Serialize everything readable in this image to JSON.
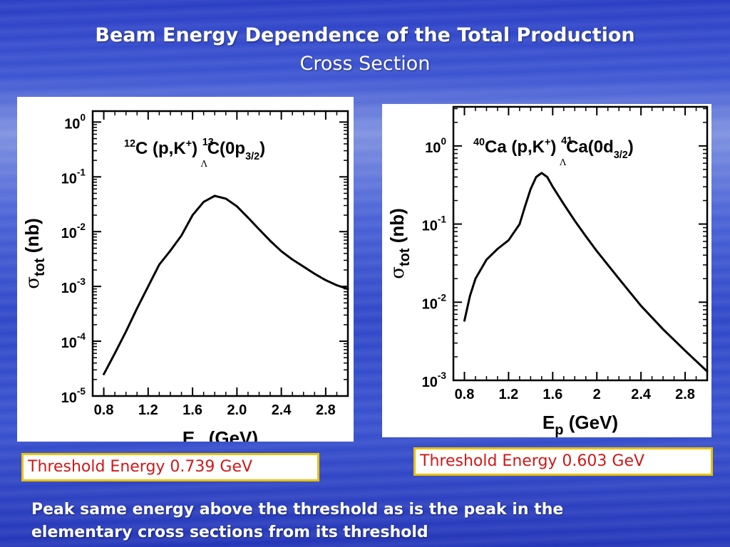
{
  "slide": {
    "title_line1": "Beam Energy Dependence of the Total Production",
    "title_line2": "Cross Section",
    "threshold1": "Threshold Energy 0.739 GeV",
    "threshold2": "Threshold Energy 0.603 GeV",
    "footer_line1": "Peak same energy above the threshold as is the peak in the",
    "footer_line2": "elementary cross sections from its threshold"
  },
  "chart_data": [
    {
      "type": "line",
      "reaction": {
        "target_mass": "12",
        "target": "C (p,K",
        "probe_sup": "+",
        "close": ")",
        "product_mass": "13",
        "lambda": "Λ",
        "product": "C(0p",
        "orbital_sub": "3/2",
        "end": ")"
      },
      "xlabel": {
        "main": "E",
        "sub": "p",
        "rest": " (GeV)"
      },
      "ylabel": {
        "main": "σ",
        "sub": "tot",
        "rest": " (nb)"
      },
      "xlim": [
        0.7,
        3.0
      ],
      "ylim_log10": [
        -5,
        0.2
      ],
      "log_y": true,
      "xticks": [
        "0.8",
        "1.2",
        "1.6",
        "2.0",
        "2.4",
        "2.8"
      ],
      "xtick_values": [
        0.8,
        1.2,
        1.6,
        2.0,
        2.4,
        2.8
      ],
      "yticks": [
        {
          "base": "10",
          "exp": "0",
          "value": 0
        },
        {
          "base": "10",
          "exp": "-1",
          "value": -1
        },
        {
          "base": "10",
          "exp": "-2",
          "value": -2
        },
        {
          "base": "10",
          "exp": "-3",
          "value": -3
        },
        {
          "base": "10",
          "exp": "-4",
          "value": -4
        },
        {
          "base": "10",
          "exp": "-5",
          "value": -5
        }
      ],
      "series": [
        {
          "x": [
            0.8,
            0.9,
            1.0,
            1.1,
            1.2,
            1.3,
            1.4,
            1.5,
            1.6,
            1.7,
            1.8,
            1.9,
            2.0,
            2.1,
            2.2,
            2.3,
            2.4,
            2.5,
            2.6,
            2.7,
            2.8,
            2.9,
            3.0
          ],
          "y": [
            2.5e-05,
            6e-05,
            0.00015,
            0.0004,
            0.001,
            0.0025,
            0.0045,
            0.0085,
            0.02,
            0.035,
            0.045,
            0.04,
            0.029,
            0.018,
            0.011,
            0.0068,
            0.0044,
            0.0031,
            0.0023,
            0.0017,
            0.0013,
            0.00105,
            0.0009
          ]
        }
      ]
    },
    {
      "type": "line",
      "reaction": {
        "target_mass": "40",
        "target": "Ca (p,K",
        "probe_sup": "+",
        "close": ")",
        "product_mass": "41",
        "lambda": "Λ",
        "product": "Ca(0d",
        "orbital_sub": "3/2",
        "end": ")"
      },
      "xlabel": {
        "main": "E",
        "sub": "p",
        "rest": " (GeV)"
      },
      "ylabel": {
        "main": "σ",
        "sub": "tot",
        "rest": " (nb)"
      },
      "xlim": [
        0.7,
        3.0
      ],
      "ylim_log10": [
        -3,
        0.5
      ],
      "log_y": true,
      "xticks": [
        "0.8",
        "1.2",
        "1.6",
        "2",
        "2.4",
        "2.8"
      ],
      "xtick_values": [
        0.8,
        1.2,
        1.6,
        2.0,
        2.4,
        2.8
      ],
      "yticks": [
        {
          "base": "10",
          "exp": "0",
          "value": 0
        },
        {
          "base": "10",
          "exp": "-1",
          "value": -1
        },
        {
          "base": "10",
          "exp": "-2",
          "value": -2
        },
        {
          "base": "10",
          "exp": "-3",
          "value": -3
        }
      ],
      "series": [
        {
          "x": [
            0.8,
            0.85,
            0.9,
            1.0,
            1.1,
            1.2,
            1.3,
            1.35,
            1.4,
            1.45,
            1.5,
            1.55,
            1.6,
            1.7,
            1.8,
            1.9,
            2.0,
            2.2,
            2.4,
            2.6,
            2.8,
            3.0
          ],
          "y": [
            0.0058,
            0.012,
            0.02,
            0.035,
            0.048,
            0.062,
            0.1,
            0.17,
            0.28,
            0.4,
            0.45,
            0.4,
            0.3,
            0.18,
            0.11,
            0.07,
            0.045,
            0.02,
            0.009,
            0.0045,
            0.0024,
            0.0013
          ]
        }
      ]
    }
  ]
}
